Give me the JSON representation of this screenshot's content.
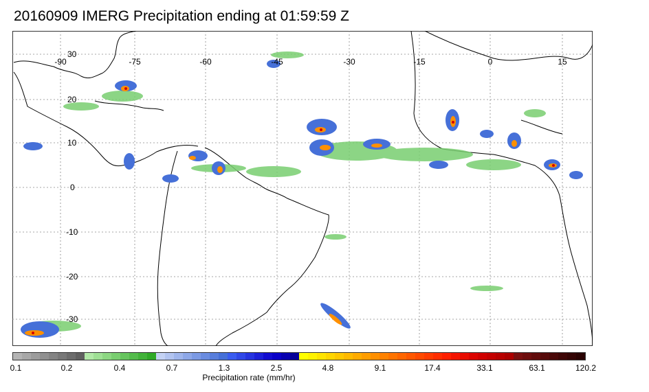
{
  "title": "20160909 IMERG Precipitation ending at 01:59:59 Z",
  "map": {
    "lon_labels": [
      "-90",
      "-75",
      "-60",
      "-45",
      "-30",
      "-15",
      "0",
      "15"
    ],
    "lat_labels": [
      "30",
      "20",
      "10",
      "0",
      "-10",
      "-20",
      "-30"
    ]
  },
  "colorbar": {
    "tick_labels": [
      "0.1",
      "0.2",
      "0.4",
      "0.7",
      "1.3",
      "2.5",
      "4.8",
      "9.1",
      "17.4",
      "33.1",
      "63.1",
      "120.2"
    ],
    "units_label": "Precipitation rate (mm/hr)",
    "colors": [
      "#b4b4b4",
      "#a8a8a8",
      "#9c9c9c",
      "#909090",
      "#848484",
      "#787878",
      "#6c6c6c",
      "#606060",
      "#b2e9a8",
      "#9fe095",
      "#8cd782",
      "#79ce70",
      "#66c55e",
      "#54bc4c",
      "#42b33a",
      "#30aa28",
      "#c4d2f4",
      "#b2c4f0",
      "#a0b6ec",
      "#8ea8e8",
      "#7c9ae4",
      "#6a8ce0",
      "#587edc",
      "#4670d8",
      "#3a5cf0",
      "#3048e8",
      "#2634e0",
      "#1c20d8",
      "#120cd0",
      "#0a00c8",
      "#0800b0",
      "#060098",
      "#ffff00",
      "#fff200",
      "#ffe400",
      "#ffd600",
      "#ffc800",
      "#ffba00",
      "#ffac00",
      "#ff9e00",
      "#ff9000",
      "#ff8200",
      "#ff7400",
      "#ff6600",
      "#ff5800",
      "#ff4a00",
      "#ff3c00",
      "#ff2e00",
      "#ff2000",
      "#f41400",
      "#e80c00",
      "#dc0400",
      "#d00000",
      "#c40000",
      "#b80000",
      "#ac0000",
      "#7a1010",
      "#6e0e0e",
      "#620c0c",
      "#560a0a",
      "#4a0808",
      "#3e0606",
      "#340404",
      "#2a0202"
    ]
  }
}
